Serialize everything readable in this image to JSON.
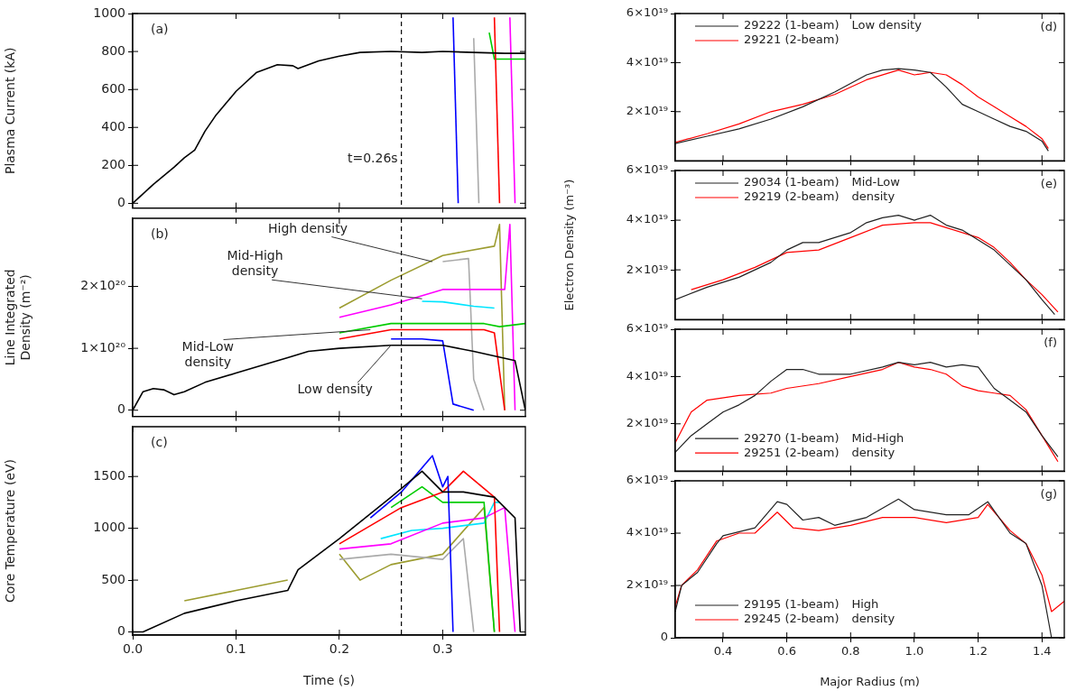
{
  "chart_data": [
    {
      "type": "line",
      "ylabel": "Plasma Current (kA)",
      "annotations": [
        "(a)"
      ],
      "xlim": [
        0,
        0.38
      ],
      "xticks": [
        0.1,
        0.2,
        0.3
      ],
      "ylim": [
        -25,
        1000
      ],
      "yticks": [
        0,
        200,
        400,
        600,
        800,
        1000
      ],
      "tick_labels": "y",
      "marker": "none",
      "ref_lines": [
        {
          "axis": "x",
          "value": 0.26,
          "label": "t=0.26s",
          "color": "#000000",
          "line_style": "dashed"
        }
      ],
      "series": [
        {
          "color": "#000000",
          "x": [
            0,
            0.02,
            0.04,
            0.05,
            0.06,
            0.07,
            0.08,
            0.1,
            0.12,
            0.14,
            0.155,
            0.16,
            0.18,
            0.2,
            0.22,
            0.25,
            0.28,
            0.3,
            0.33,
            0.36,
            0.38
          ],
          "values": [
            0,
            100,
            190,
            240,
            280,
            380,
            460,
            590,
            690,
            730,
            725,
            710,
            750,
            775,
            795,
            800,
            795,
            800,
            795,
            790,
            790
          ]
        },
        {
          "color": "#0000ff",
          "x": [
            0.31,
            0.315
          ],
          "values": [
            980,
            0
          ]
        },
        {
          "color": "#aaaaaa",
          "x": [
            0.33,
            0.335
          ],
          "values": [
            870,
            0
          ]
        },
        {
          "color": "#ff0000",
          "x": [
            0.35,
            0.355
          ],
          "values": [
            980,
            0
          ]
        },
        {
          "color": "#00cc00",
          "x": [
            0.345,
            0.35,
            0.38
          ],
          "values": [
            900,
            760,
            760
          ]
        },
        {
          "color": "#ff00ff",
          "x": [
            0.365,
            0.37
          ],
          "values": [
            980,
            0
          ]
        }
      ]
    },
    {
      "type": "line",
      "ylabel": "Line Integrated\nDensity (m⁻²)",
      "annotations": [
        "(b)",
        {
          "text": "High density",
          "x": 0.29,
          "y": 2.4e+20
        },
        {
          "text": "Mid-High\ndensity",
          "x": 0.28,
          "y": 1.8e+20
        },
        {
          "text": "Mid-Low\ndensity",
          "x": 0.23,
          "y": 1.3e+20
        },
        {
          "text": "Low density",
          "x": 0.25,
          "y": 1.05e+20
        }
      ],
      "xlim": [
        0,
        0.38
      ],
      "xticks": [
        0.1,
        0.2,
        0.3
      ],
      "ylim": [
        -1e+19,
        3.1e+20
      ],
      "yticks": [
        0,
        {
          "value": 1e+20,
          "label": "1×10²⁰"
        },
        {
          "value": 2e+20,
          "label": "2×10²⁰"
        }
      ],
      "tick_labels": "y",
      "marker": "none",
      "ref_lines": [
        {
          "axis": "x",
          "value": 0.26,
          "color": "#000000",
          "line_style": "dashed"
        }
      ],
      "series": [
        {
          "color": "#000000",
          "x": [
            0,
            0.01,
            0.02,
            0.03,
            0.04,
            0.05,
            0.07,
            0.1,
            0.13,
            0.15,
            0.17,
            0.2,
            0.25,
            0.3,
            0.33,
            0.37,
            0.38
          ],
          "values": [
            0,
            3e+19,
            3.5e+19,
            3.3e+19,
            2.5e+19,
            3e+19,
            4.5e+19,
            6e+19,
            7.5e+19,
            8.5e+19,
            9.5e+19,
            1e+20,
            1.05e+20,
            1.05e+20,
            9.5e+19,
            8e+19,
            0
          ]
        },
        {
          "color": "#0000ff",
          "x": [
            0.25,
            0.28,
            0.3,
            0.31,
            0.33
          ],
          "values": [
            1.15e+20,
            1.15e+20,
            1.12e+20,
            1e+19,
            0
          ]
        },
        {
          "color": "#ff0000",
          "x": [
            0.2,
            0.25,
            0.3,
            0.34,
            0.35,
            0.36
          ],
          "values": [
            1.15e+20,
            1.3e+20,
            1.3e+20,
            1.3e+20,
            1.25e+20,
            0
          ]
        },
        {
          "color": "#00cc00",
          "x": [
            0.2,
            0.25,
            0.3,
            0.34,
            0.355,
            0.38
          ],
          "values": [
            1.25e+20,
            1.4e+20,
            1.4e+20,
            1.4e+20,
            1.35e+20,
            1.4e+20
          ]
        },
        {
          "color": "#ff00ff",
          "x": [
            0.2,
            0.25,
            0.3,
            0.36,
            0.365,
            0.37
          ],
          "values": [
            1.5e+20,
            1.7e+20,
            1.95e+20,
            1.95e+20,
            3e+20,
            0
          ]
        },
        {
          "color": "#00e5ff",
          "x": [
            0.28,
            0.3,
            0.33,
            0.35
          ],
          "values": [
            1.76e+20,
            1.75e+20,
            1.68e+20,
            1.65e+20
          ]
        },
        {
          "color": "#aaaaaa",
          "x": [
            0.3,
            0.325,
            0.33,
            0.34
          ],
          "values": [
            2.4e+20,
            2.45e+20,
            5e+19,
            0
          ]
        },
        {
          "color": "#9c9c30",
          "x": [
            0.2,
            0.25,
            0.3,
            0.35,
            0.355,
            0.36
          ],
          "values": [
            1.65e+20,
            2.1e+20,
            2.5e+20,
            2.65e+20,
            3e+20,
            0
          ]
        }
      ]
    },
    {
      "type": "line",
      "ylabel": "Core Temperature (eV)",
      "xlabel": "Time (s)",
      "annotations": [
        "(c)"
      ],
      "xlim": [
        0,
        0.38
      ],
      "xticks": [
        {
          "value": 0,
          "label": "0.0"
        },
        0.1,
        0.2,
        0.3
      ],
      "ylim": [
        -30,
        1980
      ],
      "yticks": [
        0,
        500,
        1000,
        1500
      ],
      "marker": "none",
      "ref_lines": [
        {
          "axis": "x",
          "value": 0.26,
          "color": "#000000",
          "line_style": "dashed"
        }
      ],
      "series": [
        {
          "color": "#000000",
          "x": [
            0,
            0.01,
            0.05,
            0.1,
            0.15,
            0.16,
            0.18,
            0.2,
            0.25,
            0.28,
            0.3,
            0.32,
            0.35,
            0.37,
            0.375
          ],
          "values": [
            0,
            0,
            180,
            300,
            400,
            600,
            750,
            900,
            1300,
            1550,
            1350,
            1350,
            1300,
            1100,
            0
          ]
        },
        {
          "color": "#0000ff",
          "x": [
            0.23,
            0.26,
            0.29,
            0.3,
            0.305,
            0.31
          ],
          "values": [
            1100,
            1350,
            1700,
            1400,
            1500,
            0
          ]
        },
        {
          "color": "#ff0000",
          "x": [
            0.2,
            0.26,
            0.3,
            0.32,
            0.35,
            0.355
          ],
          "values": [
            850,
            1200,
            1350,
            1550,
            1300,
            0
          ]
        },
        {
          "color": "#00cc00",
          "x": [
            0.25,
            0.28,
            0.3,
            0.34,
            0.35
          ],
          "values": [
            1200,
            1400,
            1250,
            1250,
            0
          ]
        },
        {
          "color": "#ff00ff",
          "x": [
            0.2,
            0.25,
            0.3,
            0.34,
            0.36,
            0.37
          ],
          "values": [
            800,
            850,
            1050,
            1100,
            1200,
            0
          ]
        },
        {
          "color": "#00e5ff",
          "x": [
            0.24,
            0.27,
            0.3,
            0.34,
            0.35,
            0.355
          ],
          "values": [
            900,
            980,
            1000,
            1050,
            1250,
            1250
          ]
        },
        {
          "color": "#aaaaaa",
          "x": [
            0.2,
            0.25,
            0.3,
            0.32,
            0.33
          ],
          "values": [
            700,
            750,
            700,
            900,
            0
          ]
        },
        {
          "color": "#9c9c30",
          "x": [
            0.05,
            0.1,
            0.15,
            0.18,
            0.2,
            0.22,
            0.25,
            0.3,
            0.34,
            0.35
          ],
          "values": [
            300,
            400,
            500,
            null,
            750,
            500,
            650,
            750,
            1200,
            0
          ]
        }
      ]
    },
    {
      "type": "line",
      "annotations": [
        "(d)",
        "Low density"
      ],
      "legend": "top left",
      "xlim": [
        0.25,
        1.47
      ],
      "xticks": [
        0.4,
        0.6,
        0.8,
        1,
        1.2,
        1.4
      ],
      "ylim": [
        0,
        6e+19
      ],
      "yticks": [
        {
          "value": 2e+19,
          "label": "2×10¹⁹"
        },
        {
          "value": 4e+19,
          "label": "4×10¹⁹"
        },
        {
          "value": 6e+19,
          "label": "6×10¹⁹"
        }
      ],
      "tick_labels": "y",
      "marker": "none",
      "series": [
        {
          "name": "29222 (1-beam)",
          "color": "#222222",
          "x": [
            0.25,
            0.35,
            0.45,
            0.55,
            0.65,
            0.75,
            0.85,
            0.9,
            0.95,
            1.0,
            1.05,
            1.1,
            1.15,
            1.2,
            1.25,
            1.3,
            1.35,
            1.4,
            1.42
          ],
          "values": [
            7e+18,
            1e+19,
            1.3e+19,
            1.7e+19,
            2.2e+19,
            2.8e+19,
            3.5e+19,
            3.7e+19,
            3.75e+19,
            3.7e+19,
            3.6e+19,
            3e+19,
            2.3e+19,
            2e+19,
            1.7e+19,
            1.4e+19,
            1.2e+19,
            8e+18,
            4e+18
          ]
        },
        {
          "name": "29221 (2-beam)",
          "color": "#ff0000",
          "x": [
            0.25,
            0.35,
            0.45,
            0.55,
            0.65,
            0.75,
            0.85,
            0.95,
            1.0,
            1.05,
            1.1,
            1.15,
            1.2,
            1.25,
            1.3,
            1.35,
            1.4,
            1.42
          ],
          "values": [
            7.5e+18,
            1.1e+19,
            1.5e+19,
            2e+19,
            2.3e+19,
            2.7e+19,
            3.3e+19,
            3.7e+19,
            3.5e+19,
            3.6e+19,
            3.5e+19,
            3.1e+19,
            2.6e+19,
            2.2e+19,
            1.8e+19,
            1.4e+19,
            9e+18,
            5e+18
          ]
        }
      ]
    },
    {
      "type": "line",
      "ylabel": "Electron Density (m⁻³)",
      "annotations": [
        "(e)",
        "Mid-Low\ndensity"
      ],
      "legend": "top left",
      "xlim": [
        0.25,
        1.47
      ],
      "xticks": [
        0.4,
        0.6,
        0.8,
        1,
        1.2,
        1.4
      ],
      "ylim": [
        0,
        6e+19
      ],
      "yticks": [
        {
          "value": 2e+19,
          "label": "2×10¹⁹"
        },
        {
          "value": 4e+19,
          "label": "4×10¹⁹"
        },
        {
          "value": 6e+19,
          "label": "6×10¹⁹"
        }
      ],
      "tick_labels": "y",
      "marker": "none",
      "series": [
        {
          "name": "29034 (1-beam)",
          "color": "#222222",
          "x": [
            0.25,
            0.35,
            0.45,
            0.55,
            0.6,
            0.65,
            0.7,
            0.8,
            0.85,
            0.9,
            0.95,
            1.0,
            1.05,
            1.1,
            1.15,
            1.2,
            1.25,
            1.3,
            1.35,
            1.4,
            1.44
          ],
          "values": [
            8e+18,
            1.3e+19,
            1.7e+19,
            2.3e+19,
            2.8e+19,
            3.1e+19,
            3.1e+19,
            3.5e+19,
            3.9e+19,
            4.1e+19,
            4.2e+19,
            4e+19,
            4.2e+19,
            3.8e+19,
            3.6e+19,
            3.2e+19,
            2.8e+19,
            2.2e+19,
            1.6e+19,
            8e+18,
            2e+18
          ]
        },
        {
          "name": "29219 (2-beam)",
          "color": "#ff0000",
          "x": [
            0.3,
            0.4,
            0.5,
            0.6,
            0.7,
            0.8,
            0.9,
            1.0,
            1.05,
            1.1,
            1.2,
            1.25,
            1.3,
            1.35,
            1.4,
            1.45
          ],
          "values": [
            1.2e+19,
            1.6e+19,
            2.1e+19,
            2.7e+19,
            2.8e+19,
            3.3e+19,
            3.8e+19,
            3.9e+19,
            3.9e+19,
            3.7e+19,
            3.3e+19,
            2.9e+19,
            2.3e+19,
            1.6e+19,
            1e+19,
            3e+18
          ]
        }
      ]
    },
    {
      "type": "line",
      "annotations": [
        "(f)",
        "Mid-High\ndensity"
      ],
      "legend": "bottom left",
      "xlim": [
        0.25,
        1.47
      ],
      "xticks": [
        0.4,
        0.6,
        0.8,
        1,
        1.2,
        1.4
      ],
      "ylim": [
        0,
        6e+19
      ],
      "yticks": [
        {
          "value": 2e+19,
          "label": "2×10¹⁹"
        },
        {
          "value": 4e+19,
          "label": "4×10¹⁹"
        },
        {
          "value": 6e+19,
          "label": "6×10¹⁹"
        }
      ],
      "tick_labels": "y",
      "marker": "none",
      "series": [
        {
          "name": "29270 (1-beam)",
          "color": "#222222",
          "x": [
            0.25,
            0.3,
            0.35,
            0.4,
            0.45,
            0.5,
            0.55,
            0.6,
            0.65,
            0.7,
            0.8,
            0.9,
            0.95,
            1.0,
            1.05,
            1.1,
            1.15,
            1.2,
            1.25,
            1.3,
            1.35,
            1.4,
            1.45
          ],
          "values": [
            8e+18,
            1.5e+19,
            2e+19,
            2.5e+19,
            2.8e+19,
            3.2e+19,
            3.8e+19,
            4.3e+19,
            4.3e+19,
            4.1e+19,
            4.1e+19,
            4.4e+19,
            4.6e+19,
            4.5e+19,
            4.6e+19,
            4.4e+19,
            4.5e+19,
            4.4e+19,
            3.5e+19,
            3e+19,
            2.5e+19,
            1.5e+19,
            6e+18
          ]
        },
        {
          "name": "29251 (2-beam)",
          "color": "#ff0000",
          "x": [
            0.25,
            0.3,
            0.35,
            0.45,
            0.55,
            0.6,
            0.7,
            0.8,
            0.9,
            0.95,
            1.0,
            1.05,
            1.1,
            1.15,
            1.2,
            1.25,
            1.3,
            1.35,
            1.4,
            1.45
          ],
          "values": [
            1.2e+19,
            2.5e+19,
            3e+19,
            3.2e+19,
            3.3e+19,
            3.5e+19,
            3.7e+19,
            4e+19,
            4.3e+19,
            4.6e+19,
            4.4e+19,
            4.3e+19,
            4.1e+19,
            3.6e+19,
            3.4e+19,
            3.3e+19,
            3.2e+19,
            2.6e+19,
            1.5e+19,
            4e+18
          ]
        }
      ]
    },
    {
      "type": "line",
      "xlabel": "Major Radius (m)",
      "annotations": [
        "(g)",
        "High\ndensity"
      ],
      "legend": "bottom left",
      "xlim": [
        0.25,
        1.47
      ],
      "xticks": [
        0.4,
        0.6,
        0.8,
        {
          "value": 1,
          "label": "1.0"
        },
        1.2,
        1.4
      ],
      "ylim": [
        0,
        6e+19
      ],
      "yticks": [
        0,
        {
          "value": 2e+19,
          "label": "2×10¹⁹"
        },
        {
          "value": 4e+19,
          "label": "4×10¹⁹"
        },
        {
          "value": 6e+19,
          "label": "6×10¹⁹"
        }
      ],
      "marker": "none",
      "series": [
        {
          "name": "29195 (1-beam)",
          "color": "#222222",
          "x": [
            0.25,
            0.27,
            0.32,
            0.38,
            0.4,
            0.5,
            0.57,
            0.6,
            0.65,
            0.7,
            0.75,
            0.85,
            0.95,
            1.0,
            1.1,
            1.17,
            1.23,
            1.3,
            1.35,
            1.4,
            1.43
          ],
          "values": [
            1e+19,
            2e+19,
            2.5e+19,
            3.6e+19,
            3.9e+19,
            4.2e+19,
            5.2e+19,
            5.1e+19,
            4.5e+19,
            4.6e+19,
            4.3e+19,
            4.6e+19,
            5.3e+19,
            4.9e+19,
            4.7e+19,
            4.7e+19,
            5.2e+19,
            4e+19,
            3.6e+19,
            2e+19,
            0
          ]
        },
        {
          "name": "29245 (2-beam)",
          "color": "#ff0000",
          "x": [
            0.25,
            0.27,
            0.32,
            0.38,
            0.45,
            0.5,
            0.57,
            0.62,
            0.7,
            0.8,
            0.9,
            1.0,
            1.1,
            1.2,
            1.23,
            1.3,
            1.35,
            1.4,
            1.43,
            1.47
          ],
          "values": [
            1.2e+19,
            2e+19,
            2.6e+19,
            3.7e+19,
            4e+19,
            4e+19,
            4.8e+19,
            4.2e+19,
            4.1e+19,
            4.3e+19,
            4.6e+19,
            4.6e+19,
            4.4e+19,
            4.6e+19,
            5.1e+19,
            4.1e+19,
            3.6e+19,
            2.4e+19,
            1e+19,
            1.4e+19
          ]
        }
      ]
    }
  ]
}
